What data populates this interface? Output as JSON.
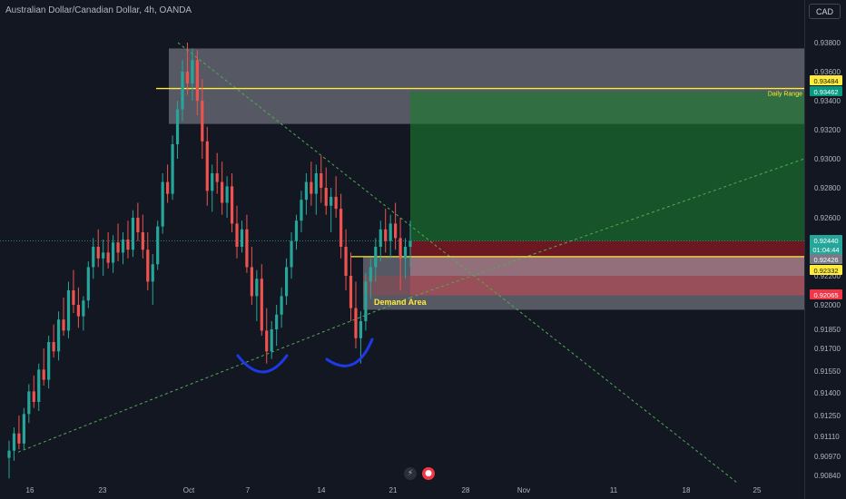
{
  "title": "Australian Dollar/Canadian Dollar, 4h, OANDA",
  "currency": "CAD",
  "icons": {
    "flash": "flash-icon",
    "record": "record-icon"
  },
  "colors": {
    "up": "#26a69a",
    "down": "#ef5350",
    "yellow": "#ffeb3b",
    "zone_gray": "#b2b5be",
    "profit_green": "#1b7a2e",
    "loss_red": "#8b1a24",
    "trend_green": "#4caf50",
    "neckline_blue": "#1e3ae8"
  },
  "chart_data": {
    "type": "candlestick",
    "symbol": "AUD/CAD",
    "timeframe": "4h",
    "x_tick_labels": [
      "16",
      "23",
      "Oct",
      "7",
      "14",
      "21",
      "28",
      "Nov",
      "11",
      "18",
      "25"
    ],
    "y_tick_labels": [
      "0.93800",
      "0.93600",
      "0.93400",
      "0.93200",
      "0.93000",
      "0.92800",
      "0.92600",
      "0.92400",
      "0.92200",
      "0.92000",
      "0.91850",
      "0.91700",
      "0.91550",
      "0.91400",
      "0.91250",
      "0.91110",
      "0.90970",
      "0.90840"
    ],
    "price_tags": [
      {
        "label": "0.93484",
        "kind": "yellow"
      },
      {
        "label": "0.93462",
        "kind": "green"
      },
      {
        "label": "0.92440",
        "kind": "teal",
        "sub": "01:04:44"
      },
      {
        "label": "0.92426",
        "kind": "gray"
      },
      {
        "label": "0.92332",
        "kind": "yellow"
      },
      {
        "label": "0.92065",
        "kind": "red"
      }
    ],
    "annotations": {
      "daily_range": "Daily Range",
      "demand_area": "Demand Area"
    },
    "y_start": 0.906,
    "y_end": 0.938,
    "candles": [
      [
        0.9096,
        0.9108,
        0.9082,
        0.9101
      ],
      [
        0.9101,
        0.9117,
        0.9094,
        0.9113
      ],
      [
        0.9113,
        0.9125,
        0.9102,
        0.9106
      ],
      [
        0.9106,
        0.913,
        0.9102,
        0.9126
      ],
      [
        0.9126,
        0.9146,
        0.912,
        0.9141
      ],
      [
        0.9141,
        0.9152,
        0.913,
        0.9134
      ],
      [
        0.9134,
        0.916,
        0.9128,
        0.9156
      ],
      [
        0.9156,
        0.917,
        0.9145,
        0.9149
      ],
      [
        0.9149,
        0.918,
        0.9143,
        0.9175
      ],
      [
        0.9175,
        0.9188,
        0.9164,
        0.9168
      ],
      [
        0.9168,
        0.9196,
        0.9162,
        0.9191
      ],
      [
        0.9191,
        0.9205,
        0.918,
        0.9184
      ],
      [
        0.9184,
        0.9216,
        0.9178,
        0.921
      ],
      [
        0.921,
        0.9224,
        0.9195,
        0.92
      ],
      [
        0.92,
        0.9212,
        0.9186,
        0.9193
      ],
      [
        0.9193,
        0.9206,
        0.9184,
        0.9203
      ],
      [
        0.9203,
        0.923,
        0.9198,
        0.9226
      ],
      [
        0.9226,
        0.9246,
        0.9218,
        0.924
      ],
      [
        0.924,
        0.9252,
        0.9226,
        0.9232
      ],
      [
        0.9232,
        0.9245,
        0.922,
        0.9236
      ],
      [
        0.9236,
        0.925,
        0.9225,
        0.9229
      ],
      [
        0.9229,
        0.9248,
        0.9222,
        0.9243
      ],
      [
        0.9243,
        0.9256,
        0.923,
        0.9236
      ],
      [
        0.9236,
        0.925,
        0.9228,
        0.9245
      ],
      [
        0.9245,
        0.9258,
        0.9232,
        0.9238
      ],
      [
        0.9238,
        0.9265,
        0.9233,
        0.926
      ],
      [
        0.926,
        0.927,
        0.9244,
        0.925
      ],
      [
        0.925,
        0.9262,
        0.9232,
        0.9238
      ],
      [
        0.9238,
        0.925,
        0.921,
        0.9216
      ],
      [
        0.9216,
        0.9235,
        0.92,
        0.9228
      ],
      [
        0.9228,
        0.9258,
        0.9224,
        0.9254
      ],
      [
        0.9254,
        0.929,
        0.9249,
        0.9284
      ],
      [
        0.9284,
        0.9296,
        0.927,
        0.9276
      ],
      [
        0.9276,
        0.9316,
        0.9272,
        0.931
      ],
      [
        0.931,
        0.934,
        0.93,
        0.9334
      ],
      [
        0.9334,
        0.9368,
        0.9326,
        0.936
      ],
      [
        0.936,
        0.938,
        0.9344,
        0.9352
      ],
      [
        0.9352,
        0.9376,
        0.934,
        0.9368
      ],
      [
        0.9368,
        0.9375,
        0.933,
        0.934
      ],
      [
        0.934,
        0.9355,
        0.93,
        0.9312
      ],
      [
        0.9312,
        0.9322,
        0.9268,
        0.9278
      ],
      [
        0.9278,
        0.9296,
        0.9264,
        0.929
      ],
      [
        0.929,
        0.9304,
        0.9276,
        0.9284
      ],
      [
        0.9284,
        0.9298,
        0.9262,
        0.927
      ],
      [
        0.927,
        0.9288,
        0.926,
        0.9281
      ],
      [
        0.9281,
        0.929,
        0.925,
        0.9256
      ],
      [
        0.9256,
        0.9268,
        0.9232,
        0.924
      ],
      [
        0.924,
        0.9258,
        0.9236,
        0.9252
      ],
      [
        0.9252,
        0.9262,
        0.9222,
        0.9226
      ],
      [
        0.9226,
        0.924,
        0.92,
        0.9206
      ],
      [
        0.9206,
        0.9224,
        0.919,
        0.9218
      ],
      [
        0.9218,
        0.9228,
        0.918,
        0.9184
      ],
      [
        0.9184,
        0.9198,
        0.916,
        0.9168
      ],
      [
        0.9168,
        0.919,
        0.9163,
        0.9185
      ],
      [
        0.9185,
        0.92,
        0.9172,
        0.9194
      ],
      [
        0.9194,
        0.9212,
        0.9186,
        0.9206
      ],
      [
        0.9206,
        0.9232,
        0.92,
        0.9226
      ],
      [
        0.9226,
        0.925,
        0.9218,
        0.9244
      ],
      [
        0.9244,
        0.9262,
        0.9238,
        0.9258
      ],
      [
        0.9258,
        0.9278,
        0.925,
        0.9272
      ],
      [
        0.9272,
        0.929,
        0.9262,
        0.9284
      ],
      [
        0.9284,
        0.9298,
        0.9268,
        0.9276
      ],
      [
        0.9276,
        0.9296,
        0.9262,
        0.929
      ],
      [
        0.929,
        0.9302,
        0.927,
        0.928
      ],
      [
        0.928,
        0.9294,
        0.9262,
        0.9268
      ],
      [
        0.9268,
        0.928,
        0.925,
        0.9274
      ],
      [
        0.9274,
        0.9288,
        0.926,
        0.9266
      ],
      [
        0.9266,
        0.9276,
        0.9232,
        0.924
      ],
      [
        0.924,
        0.9252,
        0.921,
        0.922
      ],
      [
        0.922,
        0.9236,
        0.919,
        0.9198
      ],
      [
        0.9198,
        0.9216,
        0.917,
        0.9178
      ],
      [
        0.9178,
        0.9196,
        0.916,
        0.919
      ],
      [
        0.919,
        0.9222,
        0.9184,
        0.9216
      ],
      [
        0.9216,
        0.9232,
        0.9204,
        0.9226
      ],
      [
        0.9226,
        0.9246,
        0.9216,
        0.924
      ],
      [
        0.924,
        0.9258,
        0.923,
        0.9252
      ],
      [
        0.9252,
        0.9266,
        0.9236,
        0.9244
      ],
      [
        0.9244,
        0.9262,
        0.9232,
        0.9256
      ],
      [
        0.9256,
        0.927,
        0.9238,
        0.9246
      ],
      [
        0.9246,
        0.926,
        0.921,
        0.9232
      ],
      [
        0.9232,
        0.9246,
        0.9218,
        0.924
      ],
      [
        0.924,
        0.9258,
        0.9226,
        0.9244
      ]
    ],
    "zones": [
      {
        "name": "supply-zone",
        "top": 0.9376,
        "bottom": 0.9324,
        "color": "gray"
      },
      {
        "name": "target-zone",
        "top": 0.93462,
        "bottom": 0.9244,
        "color": "green"
      },
      {
        "name": "stop-zone",
        "top": 0.9244,
        "bottom": 0.92065,
        "color": "red"
      },
      {
        "name": "demand-zone",
        "top": 0.92332,
        "bottom": 0.9197,
        "color": "gray"
      }
    ],
    "levels": [
      0.93484,
      0.92332
    ],
    "grid": false,
    "legend": "none"
  }
}
